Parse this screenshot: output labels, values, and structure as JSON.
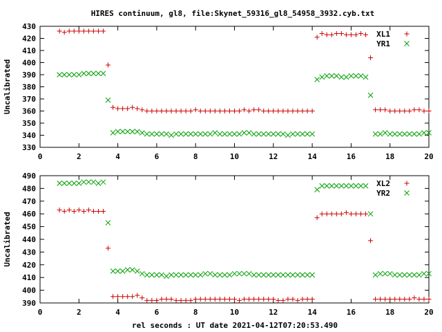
{
  "chart_data": {
    "type": "scatter",
    "title": "HIRES continuum, gl8, file:Skynet_59316_gl8_54958_3932.cyb.txt",
    "xlabel": "rel seconds : UT date 2021-04-12T07:20:53.490",
    "colors": {
      "red": "#cc0000",
      "green": "#00a000"
    },
    "panels": [
      {
        "ylabel": "Uncalibrated",
        "xlim": [
          0,
          20
        ],
        "ylim": [
          330,
          430
        ],
        "xticks": [
          0,
          2,
          4,
          6,
          8,
          10,
          12,
          14,
          16,
          18,
          20
        ],
        "yticks": [
          330,
          340,
          350,
          360,
          370,
          380,
          390,
          400,
          410,
          420,
          430
        ],
        "series": [
          {
            "name": "XL1",
            "marker": "plus",
            "color": "#cc0000",
            "x": [
              1.0,
              1.25,
              1.5,
              1.75,
              2.0,
              2.25,
              2.5,
              2.75,
              3.0,
              3.25,
              3.5,
              3.75,
              4.0,
              4.25,
              4.5,
              4.75,
              5.0,
              5.25,
              5.5,
              5.75,
              6.0,
              6.25,
              6.5,
              6.75,
              7.0,
              7.25,
              7.5,
              7.75,
              8.0,
              8.25,
              8.5,
              8.75,
              9.0,
              9.25,
              9.5,
              9.75,
              10.0,
              10.25,
              10.5,
              10.75,
              11.0,
              11.25,
              11.5,
              11.75,
              12.0,
              12.25,
              12.5,
              12.75,
              13.0,
              13.25,
              13.5,
              13.75,
              14.0,
              14.25,
              14.5,
              14.75,
              15.0,
              15.25,
              15.5,
              15.75,
              16.0,
              16.25,
              16.5,
              16.75,
              17.0,
              17.25,
              17.5,
              17.75,
              18.0,
              18.25,
              18.5,
              18.75,
              19.0,
              19.25,
              19.5,
              19.75,
              20.0
            ],
            "y": [
              426,
              425,
              426,
              426,
              426,
              426,
              426,
              426,
              426,
              426,
              398,
              363,
              362,
              362,
              362,
              363,
              362,
              361,
              360,
              360,
              360,
              360,
              360,
              360,
              360,
              360,
              360,
              360,
              361,
              360,
              360,
              360,
              360,
              360,
              360,
              360,
              360,
              360,
              361,
              360,
              361,
              361,
              360,
              360,
              360,
              360,
              360,
              360,
              360,
              360,
              360,
              360,
              360,
              421,
              424,
              423,
              423,
              424,
              424,
              423,
              423,
              423,
              424,
              423,
              404,
              361,
              361,
              361,
              360,
              360,
              360,
              360,
              360,
              361,
              361,
              360,
              360
            ]
          },
          {
            "name": "YR1",
            "marker": "cross",
            "color": "#00a000",
            "x": [
              1.0,
              1.25,
              1.5,
              1.75,
              2.0,
              2.25,
              2.5,
              2.75,
              3.0,
              3.25,
              3.5,
              3.75,
              4.0,
              4.25,
              4.5,
              4.75,
              5.0,
              5.25,
              5.5,
              5.75,
              6.0,
              6.25,
              6.5,
              6.75,
              7.0,
              7.25,
              7.5,
              7.75,
              8.0,
              8.25,
              8.5,
              8.75,
              9.0,
              9.25,
              9.5,
              9.75,
              10.0,
              10.25,
              10.5,
              10.75,
              11.0,
              11.25,
              11.5,
              11.75,
              12.0,
              12.25,
              12.5,
              12.75,
              13.0,
              13.25,
              13.5,
              13.75,
              14.0,
              14.25,
              14.5,
              14.75,
              15.0,
              15.25,
              15.5,
              15.75,
              16.0,
              16.25,
              16.5,
              16.75,
              17.0,
              17.25,
              17.5,
              17.75,
              18.0,
              18.25,
              18.5,
              18.75,
              19.0,
              19.25,
              19.5,
              19.75,
              20.0
            ],
            "y": [
              390,
              390,
              390,
              390,
              390,
              391,
              391,
              391,
              391,
              391,
              369,
              342,
              343,
              343,
              343,
              343,
              343,
              342,
              341,
              341,
              341,
              341,
              341,
              340,
              341,
              341,
              341,
              341,
              341,
              341,
              341,
              341,
              342,
              341,
              341,
              341,
              341,
              341,
              342,
              342,
              341,
              341,
              341,
              341,
              341,
              341,
              341,
              340,
              341,
              341,
              341,
              341,
              341,
              386,
              388,
              389,
              389,
              389,
              388,
              388,
              389,
              389,
              389,
              388,
              373,
              341,
              341,
              342,
              341,
              341,
              341,
              341,
              341,
              341,
              341,
              342,
              342
            ]
          }
        ]
      },
      {
        "ylabel": "Uncalibrated",
        "xlim": [
          0,
          20
        ],
        "ylim": [
          390,
          490
        ],
        "xticks": [
          0,
          2,
          4,
          6,
          8,
          10,
          12,
          14,
          16,
          18,
          20
        ],
        "yticks": [
          390,
          400,
          410,
          420,
          430,
          440,
          450,
          460,
          470,
          480,
          490
        ],
        "series": [
          {
            "name": "XL2",
            "marker": "plus",
            "color": "#cc0000",
            "x": [
              1.0,
              1.25,
              1.5,
              1.75,
              2.0,
              2.25,
              2.5,
              2.75,
              3.0,
              3.25,
              3.5,
              3.75,
              4.0,
              4.25,
              4.5,
              4.75,
              5.0,
              5.25,
              5.5,
              5.75,
              6.0,
              6.25,
              6.5,
              6.75,
              7.0,
              7.25,
              7.5,
              7.75,
              8.0,
              8.25,
              8.5,
              8.75,
              9.0,
              9.25,
              9.5,
              9.75,
              10.0,
              10.25,
              10.5,
              10.75,
              11.0,
              11.25,
              11.5,
              11.75,
              12.0,
              12.25,
              12.5,
              12.75,
              13.0,
              13.25,
              13.5,
              13.75,
              14.0,
              14.25,
              14.5,
              14.75,
              15.0,
              15.25,
              15.5,
              15.75,
              16.0,
              16.25,
              16.5,
              16.75,
              17.0,
              17.25,
              17.5,
              17.75,
              18.0,
              18.25,
              18.5,
              18.75,
              19.0,
              19.25,
              19.5,
              19.75,
              20.0
            ],
            "y": [
              463,
              462,
              463,
              462,
              463,
              462,
              463,
              462,
              462,
              462,
              433,
              395,
              395,
              395,
              395,
              395,
              396,
              394,
              392,
              392,
              392,
              393,
              393,
              393,
              392,
              392,
              392,
              392,
              393,
              393,
              393,
              393,
              393,
              393,
              393,
              393,
              393,
              392,
              393,
              393,
              393,
              393,
              393,
              393,
              393,
              392,
              392,
              393,
              393,
              392,
              393,
              393,
              393,
              457,
              460,
              460,
              460,
              460,
              460,
              461,
              460,
              460,
              460,
              460,
              439,
              393,
              393,
              393,
              393,
              393,
              393,
              393,
              393,
              394,
              393,
              393,
              393
            ]
          },
          {
            "name": "YR2",
            "marker": "cross",
            "color": "#00a000",
            "x": [
              1.0,
              1.25,
              1.5,
              1.75,
              2.0,
              2.25,
              2.5,
              2.75,
              3.0,
              3.25,
              3.5,
              3.75,
              4.0,
              4.25,
              4.5,
              4.75,
              5.0,
              5.25,
              5.5,
              5.75,
              6.0,
              6.25,
              6.5,
              6.75,
              7.0,
              7.25,
              7.5,
              7.75,
              8.0,
              8.25,
              8.5,
              8.75,
              9.0,
              9.25,
              9.5,
              9.75,
              10.0,
              10.25,
              10.5,
              10.75,
              11.0,
              11.25,
              11.5,
              11.75,
              12.0,
              12.25,
              12.5,
              12.75,
              13.0,
              13.25,
              13.5,
              13.75,
              14.0,
              14.25,
              14.5,
              14.75,
              15.0,
              15.25,
              15.5,
              15.75,
              16.0,
              16.25,
              16.5,
              16.75,
              17.0,
              17.25,
              17.5,
              17.75,
              18.0,
              18.25,
              18.5,
              18.75,
              19.0,
              19.25,
              19.5,
              19.75,
              20.0
            ],
            "y": [
              484,
              484,
              484,
              484,
              484,
              485,
              485,
              485,
              484,
              485,
              453,
              415,
              415,
              415,
              416,
              416,
              415,
              413,
              412,
              412,
              412,
              412,
              411,
              412,
              412,
              412,
              412,
              412,
              412,
              412,
              413,
              413,
              412,
              412,
              412,
              412,
              413,
              413,
              413,
              413,
              412,
              412,
              412,
              412,
              412,
              412,
              412,
              412,
              412,
              412,
              412,
              412,
              412,
              479,
              482,
              482,
              482,
              482,
              482,
              482,
              482,
              482,
              482,
              482,
              460,
              412,
              413,
              413,
              413,
              412,
              412,
              412,
              412,
              412,
              412,
              413,
              413
            ]
          }
        ]
      }
    ]
  }
}
